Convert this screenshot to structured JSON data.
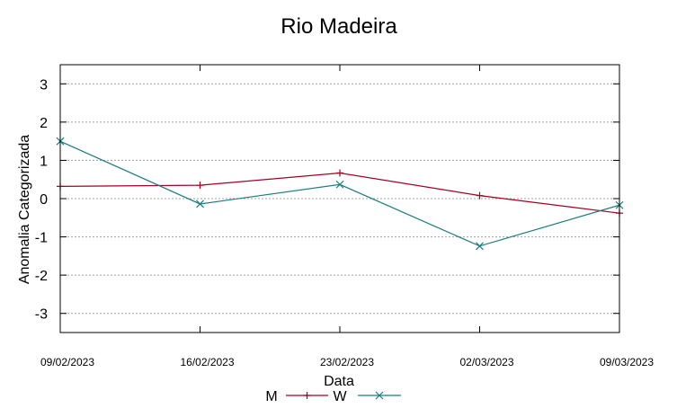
{
  "chart_data": {
    "type": "line",
    "title": "Rio Madeira",
    "xlabel": "Data",
    "ylabel": "Anomalia Categorizada",
    "categories": [
      "09/02/2023",
      "16/02/2023",
      "23/02/2023",
      "02/03/2023",
      "09/03/2023"
    ],
    "yticks": [
      "3",
      "2",
      "1",
      "0",
      "-1",
      "-2",
      "-3"
    ],
    "ylim": [
      -3.5,
      3.5
    ],
    "grid": true,
    "legend_position": "bottom-center",
    "series": [
      {
        "name": "M",
        "color": "#a50021",
        "marker": "plus",
        "values": [
          0.32,
          0.35,
          0.67,
          0.08,
          -0.38
        ]
      },
      {
        "name": "W",
        "color": "#1a7c80",
        "marker": "cross",
        "values": [
          1.5,
          -0.14,
          0.37,
          -1.24,
          -0.17
        ]
      }
    ]
  }
}
